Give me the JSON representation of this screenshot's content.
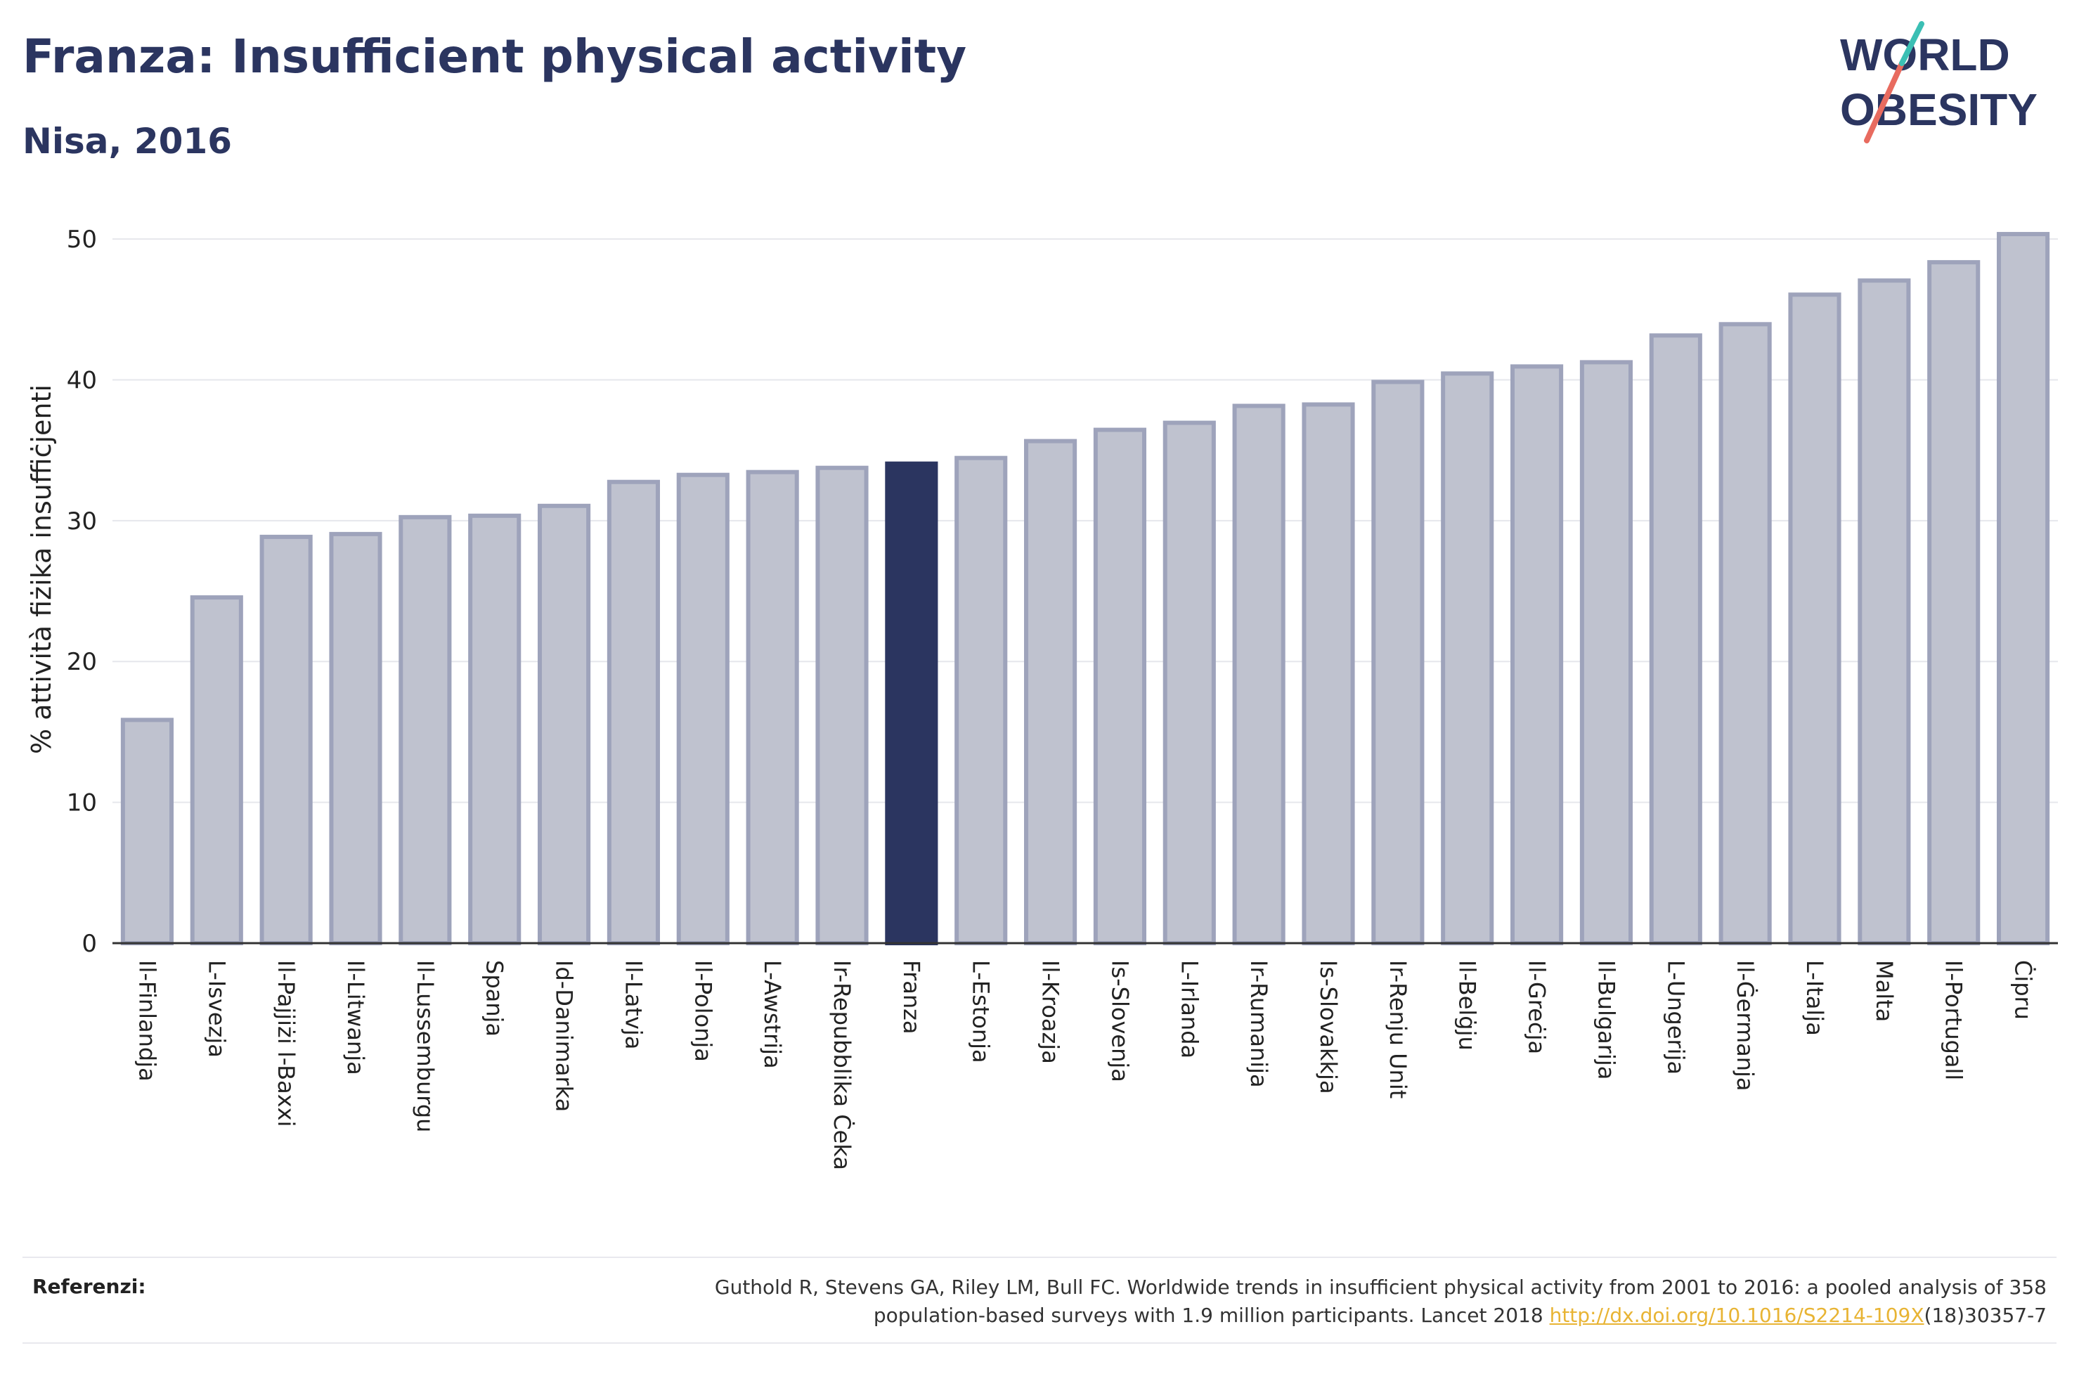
{
  "header": {
    "title": "Franza: Insufficient physical activity",
    "subtitle": "Nisa, 2016"
  },
  "logo": {
    "line1": "WORLD",
    "line2": "OBESITY"
  },
  "chart_data": {
    "type": "bar",
    "title": "Franza: Insufficient physical activity",
    "subtitle": "Nisa, 2016",
    "xlabel": "",
    "ylabel": "% attività fiżika insuffiċjenti",
    "ylim": [
      0,
      52
    ],
    "yticks": [
      0,
      10,
      20,
      30,
      40,
      50
    ],
    "grid": true,
    "highlight": "Franza",
    "categories": [
      "Il-Finlandja",
      "L-Isvezja",
      "Il-Pajjiżi l-Baxxi",
      "Il-Litwanja",
      "Il-Lussemburgu",
      "Spanja",
      "Id-Danimarka",
      "Il-Latvja",
      "Il-Polonja",
      "L-Awstrija",
      "Ir-Repubblika Ċeka",
      "Franza",
      "L-Estonja",
      "Il-Kroazja",
      "Is-Slovenja",
      "L-Irlanda",
      "Ir-Rumanija",
      "Is-Slovakkja",
      "Ir-Renju Unit",
      "Il-Belġju",
      "Il-Greċja",
      "Il-Bulgarija",
      "L-Ungerija",
      "Il-Ġermanja",
      "L-Italja",
      "Malta",
      "Il-Portugall",
      "Ċipru"
    ],
    "values": [
      16.0,
      24.7,
      29.0,
      29.2,
      30.4,
      30.5,
      31.2,
      32.9,
      33.4,
      33.6,
      33.9,
      34.2,
      34.6,
      35.8,
      36.6,
      37.1,
      38.3,
      38.4,
      40.0,
      40.6,
      41.1,
      41.4,
      43.3,
      44.1,
      46.2,
      47.2,
      48.5,
      50.5
    ],
    "colors": {
      "bar": "#bfc2cf",
      "bar_edge": "#9ea3bb",
      "highlight": "#2b3560"
    }
  },
  "footer": {
    "label": "Referenzi:",
    "text_line1": "Guthold R, Stevens GA, Riley LM, Bull FC. Worldwide trends in insufficient physical activity from 2001 to 2016: a pooled analysis of 358",
    "text_line2_pre": "population-based surveys with 1.9 million participants. Lancet 2018 ",
    "link": "http://dx.doi.org/10.1016/S2214-109X",
    "text_line2_post": "(18)30357-7"
  }
}
